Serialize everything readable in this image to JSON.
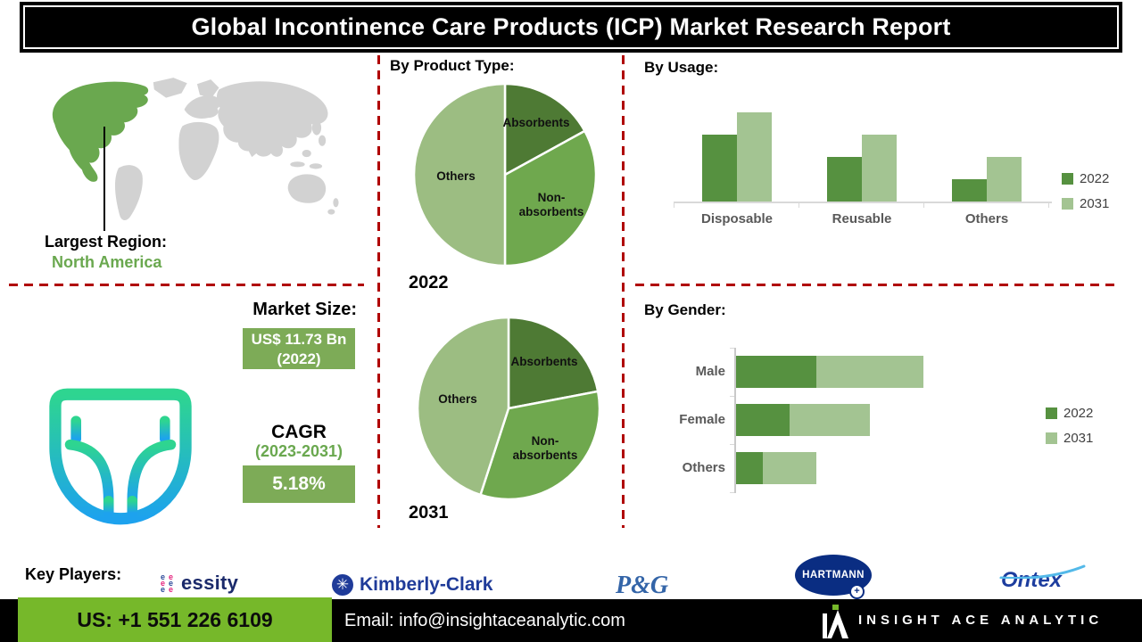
{
  "title": "Global Incontinence Care Products (ICP) Market Research Report",
  "region": {
    "label": "Largest Region:",
    "value": "North America"
  },
  "market_size": {
    "label": "Market Size:",
    "value": "US$ 11.73 Bn",
    "value_year": "(2022)",
    "cagr_label": "CAGR",
    "cagr_period": "(2023-2031)",
    "cagr_value": "5.18%"
  },
  "sections": {
    "product_type": "By  Product Type:",
    "usage": "By Usage:",
    "gender": "By Gender:"
  },
  "key_players": {
    "label": "Key Players:",
    "companies": [
      "essity",
      "Kimberly-Clark",
      "P&G",
      "HARTMANN",
      "Ontex"
    ]
  },
  "footer": {
    "phone": "US: +1 551 226 6109",
    "email": "Email: info@insightaceanalytic.com",
    "brand": "INSIGHT ACE ANALYTIC"
  },
  "colors": {
    "accent_red": "#b00000",
    "map_gray": "#d2d2d2",
    "map_green": "#6aa84f",
    "green_text": "#6aa84f",
    "box_green": "#7dab57",
    "footer_green": "#76b82a",
    "bar_dark": "#569140",
    "bar_light": "#a3c492",
    "pie_dark": "#4e7a34",
    "pie_mid": "#6fa84e",
    "pie_light": "#9cbd82"
  },
  "chart_data": [
    {
      "id": "product_type_2022",
      "type": "pie",
      "title": "By Product Type",
      "year_label": "2022",
      "slices": [
        {
          "label": "Absorbents",
          "value_pct": 17,
          "color": "#4e7a34"
        },
        {
          "label": "Non-absorbents",
          "value_pct": 33,
          "color": "#6fa84e"
        },
        {
          "label": "Others",
          "value_pct": 50,
          "color": "#9cbd82"
        }
      ],
      "values_estimated_from_angles": true
    },
    {
      "id": "product_type_2031",
      "type": "pie",
      "title": "By Product Type",
      "year_label": "2031",
      "slices": [
        {
          "label": "Absorbents",
          "value_pct": 22,
          "color": "#4e7a34"
        },
        {
          "label": "Non-absorbents",
          "value_pct": 33,
          "color": "#6fa84e"
        },
        {
          "label": "Others",
          "value_pct": 45,
          "color": "#9cbd82"
        }
      ],
      "values_estimated_from_angles": true
    },
    {
      "id": "usage",
      "type": "bar",
      "title": "By Usage",
      "categories": [
        "Disposable",
        "Reusable",
        "Others"
      ],
      "series": [
        {
          "name": "2022",
          "color": "#569140",
          "values": [
            1.5,
            1.0,
            0.5
          ]
        },
        {
          "name": "2031",
          "color": "#a3c492",
          "values": [
            2.0,
            1.5,
            1.0
          ]
        }
      ],
      "ylim": [
        0,
        2
      ],
      "values_are_relative": true,
      "legend_position": "right",
      "grid": false
    },
    {
      "id": "gender",
      "type": "bar",
      "orientation": "horizontal-stacked",
      "title": "By Gender",
      "categories": [
        "Male",
        "Female",
        "Others"
      ],
      "series": [
        {
          "name": "2022",
          "color": "#569140",
          "values": [
            1.5,
            1.0,
            0.5
          ]
        },
        {
          "name": "2031",
          "color": "#a3c492",
          "values": [
            2.0,
            1.5,
            1.0
          ]
        }
      ],
      "xlim": [
        0,
        3.5
      ],
      "values_are_relative": true,
      "legend_position": "right",
      "grid": false
    }
  ]
}
